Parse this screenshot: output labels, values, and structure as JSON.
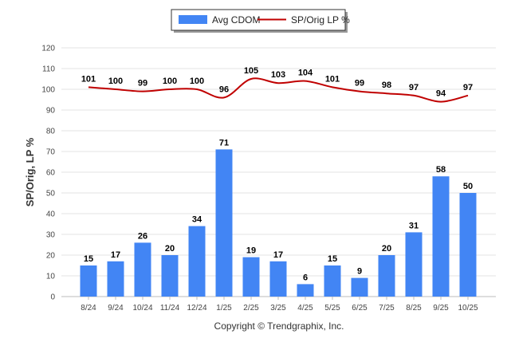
{
  "chart_data": {
    "type": "bar",
    "categories": [
      "8/24",
      "9/24",
      "10/24",
      "11/24",
      "12/24",
      "1/25",
      "2/25",
      "3/25",
      "4/25",
      "5/25",
      "6/25",
      "7/25",
      "8/25",
      "9/25",
      "10/25"
    ],
    "series": [
      {
        "name": "Avg CDOM",
        "type": "bar",
        "color": "#4285f4",
        "values": [
          15,
          17,
          26,
          20,
          34,
          71,
          19,
          17,
          6,
          15,
          9,
          20,
          31,
          58,
          50
        ]
      },
      {
        "name": "SP/Orig LP %",
        "type": "line",
        "color": "#c00000",
        "values": [
          101,
          100,
          99,
          100,
          100,
          96,
          105,
          103,
          104,
          101,
          99,
          98,
          97,
          94,
          97
        ]
      }
    ],
    "ylabel": "SP/Orig, LP %",
    "ylim": [
      0,
      120
    ],
    "yticks": [
      0,
      10,
      20,
      30,
      40,
      50,
      60,
      70,
      80,
      90,
      100,
      110,
      120
    ],
    "grid": true,
    "legend": "top-center"
  },
  "footer": {
    "copyright": "Copyright © Trendgraphix, Inc."
  }
}
